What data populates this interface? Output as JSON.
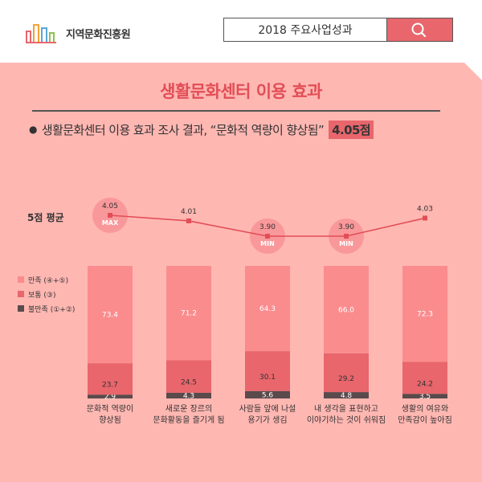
{
  "header": {
    "logo_text": "지역문화진흥원",
    "search_text": "2018 주요사업성과",
    "search_icon": "search-icon"
  },
  "title": "생활문화센터 이용 효과",
  "subtitle": {
    "bullet": "●",
    "text": "생활문화센터 이용 효과 조사 결과, “문화적 역량이 향상됨”",
    "score": "4.05점"
  },
  "colors": {
    "background": "#ffb7b2",
    "satisfied": "#fa8c8e",
    "neutral": "#e8666c",
    "dissatisfied": "#5a4a4c",
    "accent": "#e24e56"
  },
  "chart_data": [
    {
      "type": "line",
      "label": "5점 평균",
      "categories": [
        "문화적 역량이 향상됨",
        "새로운 장르의 문화활동을 즐기게 됨",
        "사람들 앞에 나설 용기가 생김",
        "내 생각을 표현하고 이야기하는 것이 쉬워짐",
        "생활의 여유와 만족감이 높아짐"
      ],
      "values": [
        4.05,
        4.01,
        3.9,
        3.9,
        4.03
      ],
      "value_labels": [
        "4.05",
        "4.01",
        "3.90",
        "3.90",
        "4.03"
      ],
      "markers": [
        "MAX",
        "",
        "MIN",
        "MIN",
        ""
      ]
    },
    {
      "type": "bar",
      "stacked": true,
      "categories": [
        "문화적 역량이\n향상됨",
        "새로운 장르의\n문화활동을 즐기게 됨",
        "사람들 앞에 나설\n용기가 생김",
        "내 생각을 표현하고\n이야기하는 것이 쉬워짐",
        "생활의 여유와\n만족감이 높아짐"
      ],
      "series": [
        {
          "name": "불만족 (①+②)",
          "values": [
            2.9,
            4.3,
            5.6,
            4.8,
            3.5
          ],
          "labels": [
            "2.9",
            "4.3",
            "5.6",
            "4.8",
            "3.5"
          ]
        },
        {
          "name": "보통 (③)",
          "values": [
            23.7,
            24.5,
            30.1,
            29.2,
            24.2
          ],
          "labels": [
            "23.7",
            "24.5",
            "30.1",
            "29.2",
            "24.2"
          ]
        },
        {
          "name": "만족 (④+⑤)",
          "values": [
            73.4,
            71.2,
            64.3,
            66.0,
            72.3
          ],
          "labels": [
            "73.4",
            "71.2",
            "64.3",
            "66.0",
            "72.3"
          ]
        }
      ],
      "legend": [
        "만족 (④+⑤)",
        "보통 (③)",
        "불만족 (①+②)"
      ],
      "ylim": [
        0,
        100
      ]
    }
  ]
}
